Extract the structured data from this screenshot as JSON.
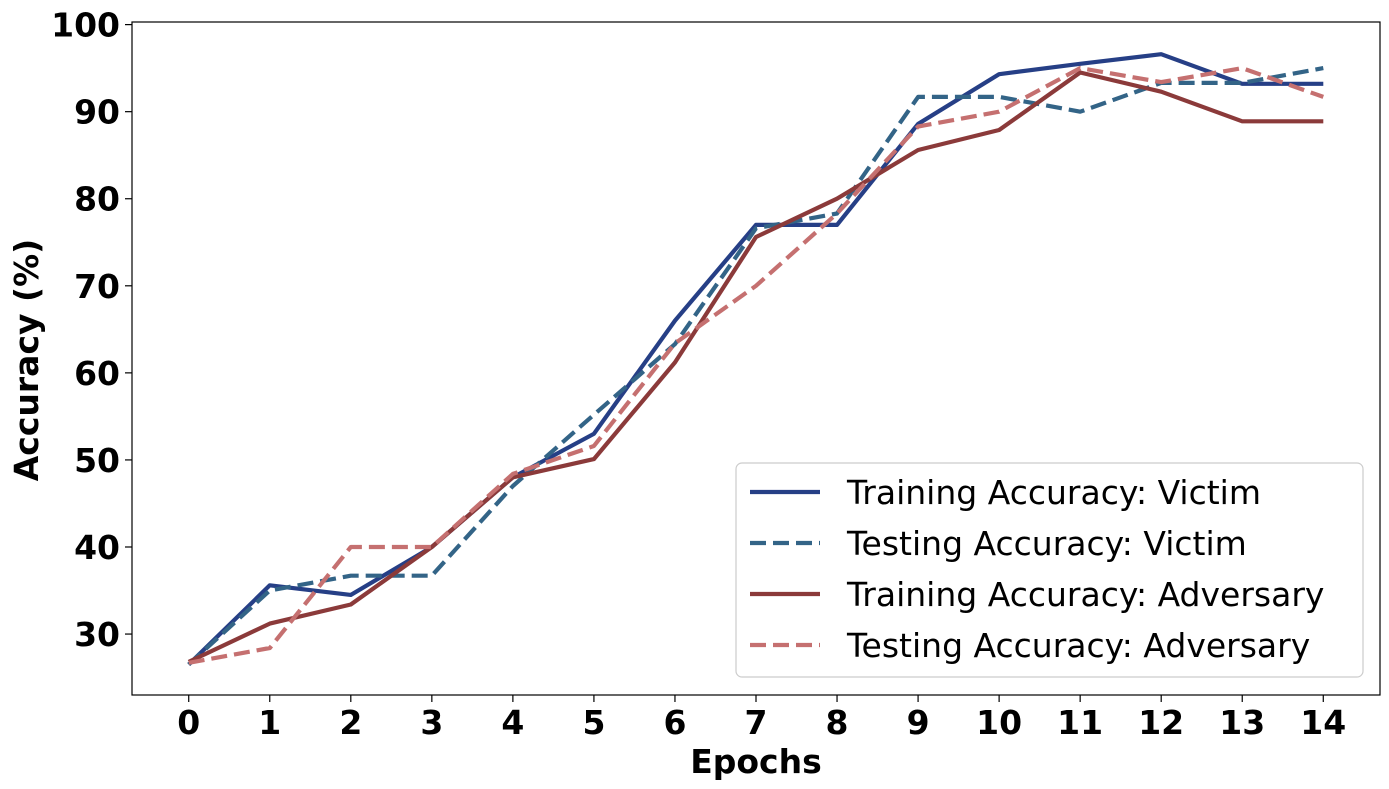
{
  "chart_data": {
    "type": "line",
    "title": "",
    "xlabel": "Epochs",
    "ylabel": "Accuracy (%)",
    "x": [
      0,
      1,
      2,
      3,
      4,
      5,
      6,
      7,
      8,
      9,
      10,
      11,
      12,
      13,
      14
    ],
    "xticks": [
      "0",
      "1",
      "2",
      "3",
      "4",
      "5",
      "6",
      "7",
      "8",
      "9",
      "10",
      "11",
      "12",
      "13",
      "14"
    ],
    "yticks": [
      30,
      40,
      50,
      60,
      70,
      80,
      90,
      100
    ],
    "ytick_labels": [
      "30",
      "40",
      "50",
      "60",
      "70",
      "80",
      "90",
      "100"
    ],
    "xlim": [
      -0.7,
      14.7
    ],
    "ylim": [
      23,
      100.3
    ],
    "grid": false,
    "legend_position": "lower-right",
    "series": [
      {
        "name": "Training Accuracy: Victim",
        "color": "#263F86",
        "style": "solid",
        "values": [
          26.5,
          35.6,
          34.5,
          40.0,
          48.0,
          53.0,
          66.0,
          77.0,
          77.0,
          88.6,
          94.3,
          95.5,
          96.6,
          93.2,
          93.2
        ]
      },
      {
        "name": "Testing Accuracy: Victim",
        "color": "#336487",
        "style": "dashed",
        "values": [
          26.5,
          35.0,
          36.7,
          36.7,
          47.0,
          55.2,
          63.3,
          76.6,
          78.3,
          91.7,
          91.7,
          90.0,
          93.3,
          93.3,
          95.0
        ]
      },
      {
        "name": "Training Accuracy: Adversary",
        "color": "#8B3A3A",
        "style": "solid",
        "values": [
          26.8,
          31.2,
          33.4,
          40.0,
          48.0,
          50.1,
          61.2,
          75.6,
          80.0,
          85.6,
          87.9,
          94.5,
          92.3,
          88.9,
          88.9
        ]
      },
      {
        "name": "Testing Accuracy: Adversary",
        "color": "#C57070",
        "style": "dashed",
        "values": [
          26.7,
          28.4,
          40.0,
          40.0,
          48.4,
          51.6,
          63.4,
          70.0,
          78.3,
          88.3,
          90.0,
          95.0,
          93.4,
          95.0,
          91.7
        ]
      }
    ]
  }
}
